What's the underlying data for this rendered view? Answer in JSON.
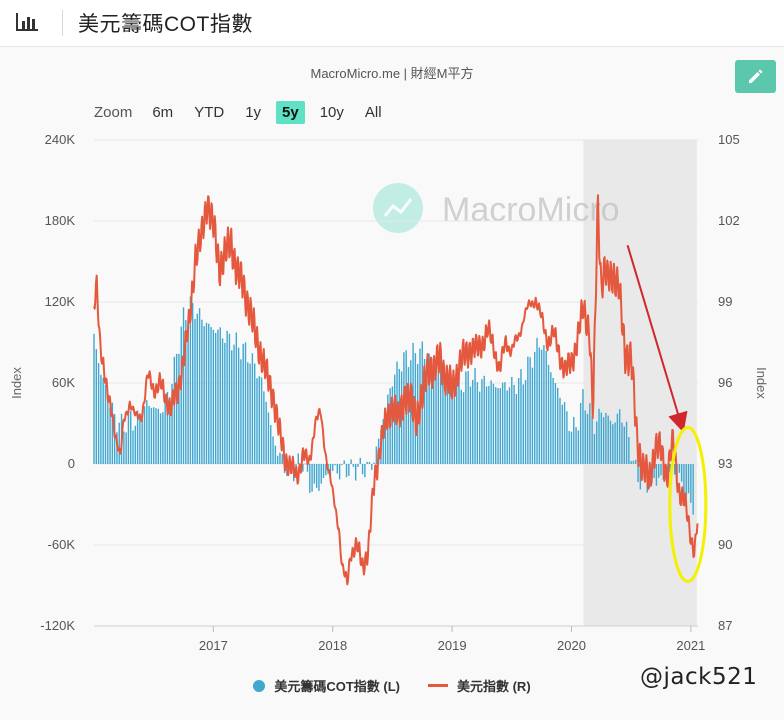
{
  "header": {
    "title": "美元籌碼COT指數",
    "icon": "bar-chart-icon"
  },
  "chart_data": {
    "type": "bar+line",
    "source": "MacroMicro.me | 財經M平方",
    "brand_watermark": "MacroMicro",
    "x_ticks": [
      "2017",
      "2018",
      "2019",
      "2020",
      "2021"
    ],
    "y_left": {
      "label": "Index",
      "ticks": [
        "240K",
        "180K",
        "120K",
        "60K",
        "0",
        "-60K",
        "-120K"
      ],
      "range": [
        -120000,
        240000
      ]
    },
    "y_right": {
      "label": "Index",
      "ticks": [
        "105",
        "102",
        "99",
        "96",
        "93",
        "90",
        "87"
      ],
      "range": [
        87,
        105
      ]
    },
    "series": [
      {
        "name": "美元籌碼COT指數 (L)",
        "kind": "bar",
        "axis": "left",
        "color": "#3fa7d0",
        "points": [
          [
            2016.0,
            95000
          ],
          [
            2016.05,
            70000
          ],
          [
            2016.1,
            55000
          ],
          [
            2016.15,
            40000
          ],
          [
            2016.2,
            30000
          ],
          [
            2016.25,
            28000
          ],
          [
            2016.3,
            35000
          ],
          [
            2016.35,
            30000
          ],
          [
            2016.4,
            38000
          ],
          [
            2016.45,
            45000
          ],
          [
            2016.5,
            42000
          ],
          [
            2016.55,
            38000
          ],
          [
            2016.6,
            45000
          ],
          [
            2016.65,
            60000
          ],
          [
            2016.7,
            85000
          ],
          [
            2016.75,
            108000
          ],
          [
            2016.8,
            118000
          ],
          [
            2016.85,
            114000
          ],
          [
            2016.9,
            108000
          ],
          [
            2016.95,
            103000
          ],
          [
            2017.0,
            100000
          ],
          [
            2017.05,
            98000
          ],
          [
            2017.1,
            94000
          ],
          [
            2017.15,
            92000
          ],
          [
            2017.2,
            88000
          ],
          [
            2017.25,
            85000
          ],
          [
            2017.3,
            80000
          ],
          [
            2017.35,
            72000
          ],
          [
            2017.4,
            62000
          ],
          [
            2017.45,
            45000
          ],
          [
            2017.5,
            18000
          ],
          [
            2017.55,
            8000
          ],
          [
            2017.6,
            -3000
          ],
          [
            2017.65,
            -6000
          ],
          [
            2017.7,
            -2000
          ],
          [
            2017.75,
            2000
          ],
          [
            2017.8,
            -15000
          ],
          [
            2017.85,
            -20000
          ],
          [
            2017.9,
            -15000
          ],
          [
            2017.95,
            -8000
          ],
          [
            2018.0,
            -5000
          ],
          [
            2018.05,
            -6000
          ],
          [
            2018.1,
            -3000
          ],
          [
            2018.15,
            -5000
          ],
          [
            2018.2,
            -3000
          ],
          [
            2018.25,
            -4000
          ],
          [
            2018.3,
            -3000
          ],
          [
            2018.35,
            3000
          ],
          [
            2018.4,
            25000
          ],
          [
            2018.45,
            45000
          ],
          [
            2018.5,
            62000
          ],
          [
            2018.55,
            72000
          ],
          [
            2018.6,
            78000
          ],
          [
            2018.65,
            80000
          ],
          [
            2018.7,
            82000
          ],
          [
            2018.75,
            84000
          ],
          [
            2018.8,
            78000
          ],
          [
            2018.85,
            76000
          ],
          [
            2018.9,
            72000
          ],
          [
            2018.95,
            68000
          ],
          [
            2019.0,
            62000
          ],
          [
            2019.05,
            58000
          ],
          [
            2019.1,
            60000
          ],
          [
            2019.15,
            66000
          ],
          [
            2019.2,
            62000
          ],
          [
            2019.25,
            60000
          ],
          [
            2019.3,
            61000
          ],
          [
            2019.35,
            58000
          ],
          [
            2019.4,
            57000
          ],
          [
            2019.45,
            59000
          ],
          [
            2019.5,
            58000
          ],
          [
            2019.55,
            60000
          ],
          [
            2019.6,
            65000
          ],
          [
            2019.65,
            75000
          ],
          [
            2019.7,
            85000
          ],
          [
            2019.75,
            90000
          ],
          [
            2019.8,
            78000
          ],
          [
            2019.85,
            62000
          ],
          [
            2019.9,
            52000
          ],
          [
            2019.95,
            40000
          ],
          [
            2020.0,
            25000
          ],
          [
            2020.05,
            30000
          ],
          [
            2020.1,
            50000
          ],
          [
            2020.15,
            38000
          ],
          [
            2020.2,
            28000
          ],
          [
            2020.25,
            40000
          ],
          [
            2020.3,
            35000
          ],
          [
            2020.35,
            30000
          ],
          [
            2020.4,
            38000
          ],
          [
            2020.45,
            30000
          ],
          [
            2020.5,
            10000
          ],
          [
            2020.55,
            -10000
          ],
          [
            2020.6,
            -12000
          ],
          [
            2020.65,
            -15000
          ],
          [
            2020.7,
            -10000
          ],
          [
            2020.75,
            -12000
          ],
          [
            2020.8,
            -8000
          ],
          [
            2020.85,
            -6000
          ],
          [
            2020.9,
            -8000
          ],
          [
            2020.95,
            -28000
          ],
          [
            2021.0,
            -30000
          ],
          [
            2021.03,
            -28000
          ]
        ]
      },
      {
        "name": "美元指數 (R)",
        "kind": "line",
        "axis": "right",
        "color": "#e4583e",
        "points": [
          [
            2016.0,
            98.6
          ],
          [
            2016.02,
            99.6
          ],
          [
            2016.05,
            97.5
          ],
          [
            2016.08,
            96.8
          ],
          [
            2016.12,
            95.3
          ],
          [
            2016.15,
            94.8
          ],
          [
            2016.2,
            93.8
          ],
          [
            2016.22,
            93.2
          ],
          [
            2016.25,
            94.5
          ],
          [
            2016.3,
            95.4
          ],
          [
            2016.35,
            94.6
          ],
          [
            2016.4,
            94.9
          ],
          [
            2016.45,
            96.2
          ],
          [
            2016.5,
            95.8
          ],
          [
            2016.55,
            96.0
          ],
          [
            2016.6,
            95.4
          ],
          [
            2016.65,
            95.2
          ],
          [
            2016.7,
            95.6
          ],
          [
            2016.75,
            97.0
          ],
          [
            2016.8,
            98.2
          ],
          [
            2016.85,
            100.8
          ],
          [
            2016.9,
            101.3
          ],
          [
            2016.95,
            102.8
          ],
          [
            2017.0,
            101.8
          ],
          [
            2017.05,
            100.3
          ],
          [
            2017.1,
            100.8
          ],
          [
            2017.15,
            101.2
          ],
          [
            2017.2,
            100.1
          ],
          [
            2017.25,
            99.6
          ],
          [
            2017.3,
            98.8
          ],
          [
            2017.35,
            97.8
          ],
          [
            2017.4,
            97.1
          ],
          [
            2017.45,
            96.2
          ],
          [
            2017.5,
            95.6
          ],
          [
            2017.55,
            94.2
          ],
          [
            2017.6,
            93.3
          ],
          [
            2017.65,
            92.8
          ],
          [
            2017.7,
            92.6
          ],
          [
            2017.75,
            93.3
          ],
          [
            2017.8,
            93.0
          ],
          [
            2017.85,
            94.5
          ],
          [
            2017.9,
            94.8
          ],
          [
            2017.95,
            93.2
          ],
          [
            2018.0,
            91.8
          ],
          [
            2018.05,
            90.8
          ],
          [
            2018.08,
            89.1
          ],
          [
            2018.12,
            88.5
          ],
          [
            2018.15,
            89.8
          ],
          [
            2018.2,
            89.9
          ],
          [
            2018.25,
            89.3
          ],
          [
            2018.3,
            89.8
          ],
          [
            2018.35,
            92.5
          ],
          [
            2018.4,
            93.7
          ],
          [
            2018.45,
            94.6
          ],
          [
            2018.5,
            95.2
          ],
          [
            2018.55,
            94.6
          ],
          [
            2018.6,
            95.6
          ],
          [
            2018.65,
            95.3
          ],
          [
            2018.7,
            94.8
          ],
          [
            2018.75,
            95.4
          ],
          [
            2018.8,
            96.7
          ],
          [
            2018.85,
            96.4
          ],
          [
            2018.9,
            97.0
          ],
          [
            2018.95,
            96.1
          ],
          [
            2019.0,
            95.8
          ],
          [
            2019.05,
            96.5
          ],
          [
            2019.1,
            97.0
          ],
          [
            2019.15,
            97.3
          ],
          [
            2019.2,
            97.2
          ],
          [
            2019.25,
            97.5
          ],
          [
            2019.3,
            97.9
          ],
          [
            2019.35,
            97.4
          ],
          [
            2019.4,
            96.4
          ],
          [
            2019.45,
            97.6
          ],
          [
            2019.5,
            97.2
          ],
          [
            2019.55,
            97.6
          ],
          [
            2019.6,
            98.5
          ],
          [
            2019.65,
            98.8
          ],
          [
            2019.7,
            99.2
          ],
          [
            2019.75,
            98.3
          ],
          [
            2019.8,
            97.6
          ],
          [
            2019.85,
            97.8
          ],
          [
            2019.9,
            97.1
          ],
          [
            2019.95,
            96.4
          ],
          [
            2020.0,
            96.8
          ],
          [
            2020.05,
            97.6
          ],
          [
            2020.1,
            98.8
          ],
          [
            2020.15,
            98.0
          ],
          [
            2020.18,
            94.8
          ],
          [
            2020.2,
            98.5
          ],
          [
            2020.22,
            102.8
          ],
          [
            2020.25,
            99.6
          ],
          [
            2020.28,
            100.2
          ],
          [
            2020.3,
            99.8
          ],
          [
            2020.35,
            100.1
          ],
          [
            2020.4,
            99.4
          ],
          [
            2020.45,
            97.1
          ],
          [
            2020.5,
            96.9
          ],
          [
            2020.55,
            93.9
          ],
          [
            2020.6,
            92.8
          ],
          [
            2020.65,
            92.4
          ],
          [
            2020.7,
            93.6
          ],
          [
            2020.75,
            93.5
          ],
          [
            2020.8,
            92.6
          ],
          [
            2020.85,
            93.8
          ],
          [
            2020.9,
            92.1
          ],
          [
            2020.95,
            91.5
          ],
          [
            2021.0,
            90.4
          ],
          [
            2021.03,
            89.8
          ],
          [
            2021.06,
            90.9
          ]
        ]
      }
    ],
    "shaded_region": {
      "from": 2020.1,
      "to": 2021.05
    },
    "annotations": {
      "arrow": {
        "from": [
          2020.47,
          101.1
        ],
        "to": [
          2020.93,
          94.3
        ],
        "color": "#d0272d"
      },
      "ellipse": {
        "center": [
          2021.0,
          91.5
        ],
        "color": "#f4f000"
      }
    }
  },
  "zoom": {
    "label": "Zoom",
    "options": [
      "6m",
      "YTD",
      "1y",
      "5y",
      "10y",
      "All"
    ],
    "active": "5y"
  },
  "legend": [
    "美元籌碼COT指數 (L)",
    "美元指數 (R)"
  ],
  "social_watermark": "@jack521"
}
